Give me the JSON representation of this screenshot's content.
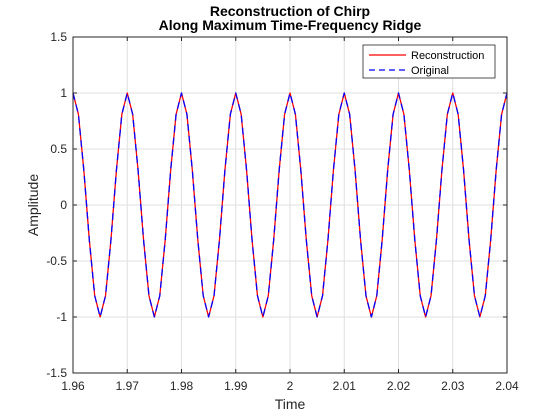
{
  "chart_data": {
    "type": "line",
    "title": [
      "Reconstruction of Chirp",
      "Along Maximum Time-Frequency Ridge"
    ],
    "xlabel": "Time",
    "ylabel": "Amplitude",
    "xlim": [
      1.96,
      2.04
    ],
    "ylim": [
      -1.5,
      1.5
    ],
    "xticks": [
      1.96,
      1.97,
      1.98,
      1.99,
      2.0,
      2.01,
      2.02,
      2.03,
      2.04
    ],
    "xtick_labels": [
      "1.96",
      "1.97",
      "1.98",
      "1.99",
      "2",
      "2.01",
      "2.02",
      "2.03",
      "2.04"
    ],
    "yticks": [
      -1.5,
      -1,
      -0.5,
      0,
      0.5,
      1,
      1.5
    ],
    "ytick_labels": [
      "-1.5",
      "-1",
      "-0.5",
      "0",
      "0.5",
      "1",
      "1.5"
    ],
    "grid": true,
    "legend_position": "top-right",
    "x": [
      1.96,
      1.961,
      1.962,
      1.963,
      1.964,
      1.965,
      1.966,
      1.967,
      1.968,
      1.969,
      1.97,
      1.971,
      1.972,
      1.973,
      1.974,
      1.975,
      1.976,
      1.977,
      1.978,
      1.979,
      1.98,
      1.981,
      1.982,
      1.983,
      1.984,
      1.985,
      1.986,
      1.987,
      1.988,
      1.989,
      1.99,
      1.991,
      1.992,
      1.993,
      1.994,
      1.995,
      1.996,
      1.997,
      1.998,
      1.999,
      2.0,
      2.001,
      2.002,
      2.003,
      2.004,
      2.005,
      2.006,
      2.007,
      2.008,
      2.009,
      2.01,
      2.011,
      2.012,
      2.013,
      2.014,
      2.015,
      2.016,
      2.017,
      2.018,
      2.019,
      2.02,
      2.021,
      2.022,
      2.023,
      2.024,
      2.025,
      2.026,
      2.027,
      2.028,
      2.029,
      2.03,
      2.031,
      2.032,
      2.033,
      2.034,
      2.035,
      2.036,
      2.037,
      2.038,
      2.039,
      2.04
    ],
    "series": [
      {
        "name": "Reconstruction",
        "color": "#ff0000",
        "dash": "solid",
        "values": [
          1,
          0.809,
          0.309,
          -0.309,
          -0.809,
          -1,
          -0.809,
          -0.309,
          0.309,
          0.809,
          1,
          0.809,
          0.309,
          -0.309,
          -0.809,
          -1,
          -0.809,
          -0.309,
          0.309,
          0.809,
          1,
          0.809,
          0.309,
          -0.309,
          -0.809,
          -1,
          -0.809,
          -0.309,
          0.309,
          0.809,
          1,
          0.809,
          0.309,
          -0.309,
          -0.809,
          -1,
          -0.809,
          -0.309,
          0.309,
          0.809,
          1,
          0.809,
          0.309,
          -0.309,
          -0.809,
          -1,
          -0.809,
          -0.309,
          0.309,
          0.809,
          1,
          0.809,
          0.309,
          -0.309,
          -0.809,
          -1,
          -0.809,
          -0.309,
          0.309,
          0.809,
          1,
          0.809,
          0.309,
          -0.309,
          -0.809,
          -1,
          -0.809,
          -0.309,
          0.309,
          0.809,
          1,
          0.809,
          0.309,
          -0.309,
          -0.809,
          -1,
          -0.809,
          -0.309,
          0.309,
          0.809,
          1
        ]
      },
      {
        "name": "Original",
        "color": "#0000ff",
        "dash": "dashed",
        "values": [
          1,
          0.809,
          0.309,
          -0.309,
          -0.809,
          -1,
          -0.809,
          -0.309,
          0.309,
          0.809,
          1,
          0.809,
          0.309,
          -0.309,
          -0.809,
          -1,
          -0.809,
          -0.309,
          0.309,
          0.809,
          1,
          0.809,
          0.309,
          -0.309,
          -0.809,
          -1,
          -0.809,
          -0.309,
          0.309,
          0.809,
          1,
          0.809,
          0.309,
          -0.309,
          -0.809,
          -1,
          -0.809,
          -0.309,
          0.309,
          0.809,
          1,
          0.809,
          0.309,
          -0.309,
          -0.809,
          -1,
          -0.809,
          -0.309,
          0.309,
          0.809,
          1,
          0.809,
          0.309,
          -0.309,
          -0.809,
          -1,
          -0.809,
          -0.309,
          0.309,
          0.809,
          1,
          0.809,
          0.309,
          -0.309,
          -0.809,
          -1,
          -0.809,
          -0.309,
          0.309,
          0.809,
          1,
          0.809,
          0.309,
          -0.309,
          -0.809,
          -1,
          -0.809,
          -0.309,
          0.309,
          0.809,
          1
        ]
      }
    ]
  }
}
